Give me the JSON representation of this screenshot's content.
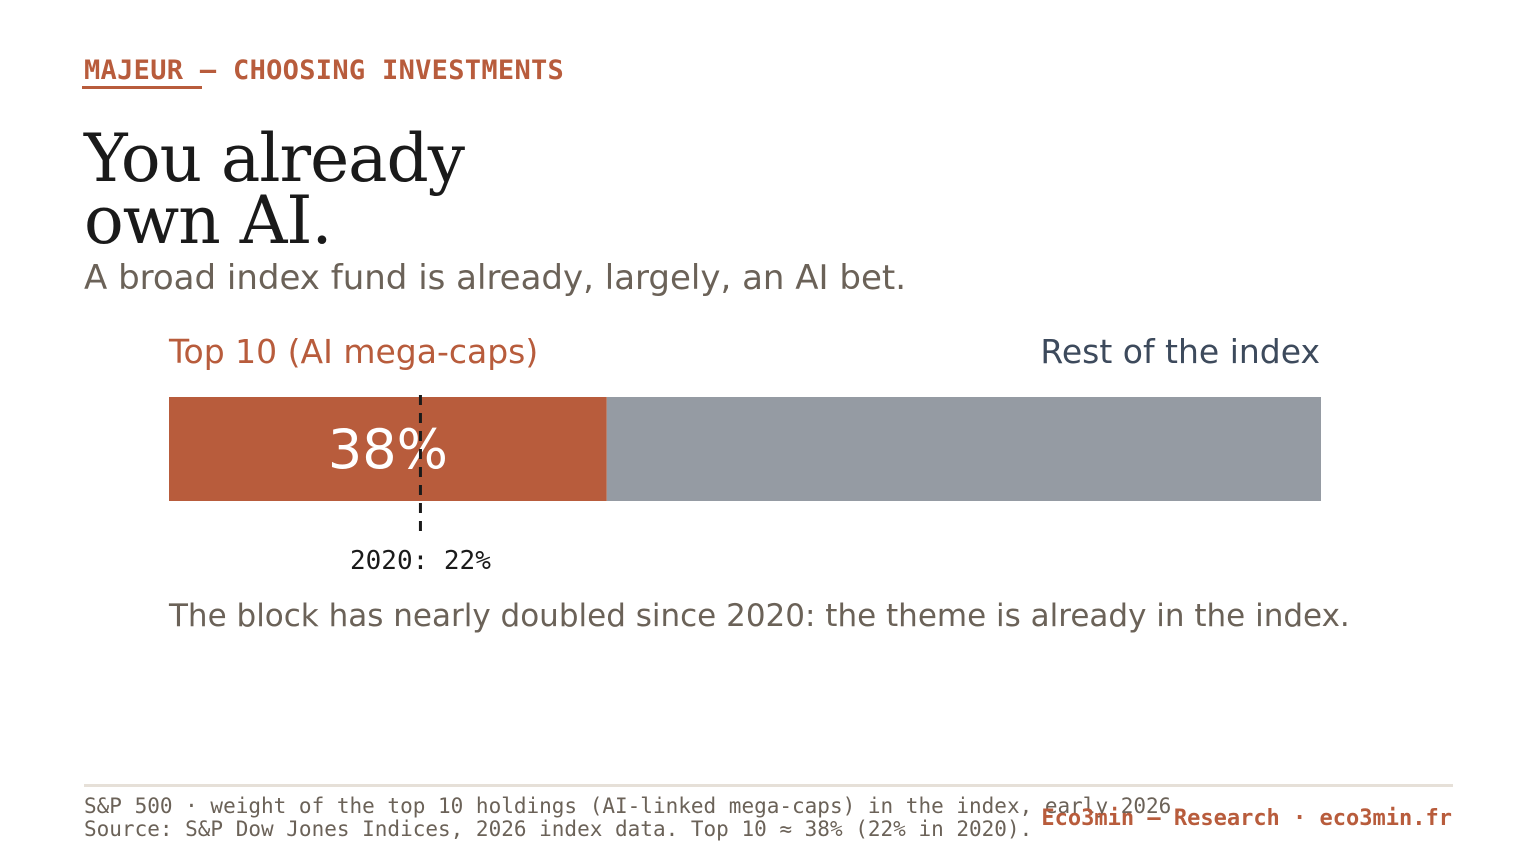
{
  "header": {
    "kicker_brand": "MAJEUR",
    "kicker_rest": " — CHOOSING INVESTMENTS",
    "title_line1": "You already",
    "title_line2": "own AI.",
    "subtitle": "A broad index fund is already, largely, an AI bet."
  },
  "chart_data": {
    "type": "bar",
    "orientation": "horizontal-stacked",
    "series": [
      {
        "name": "Top 10 (AI mega-caps)",
        "value": 38,
        "value_label": "38%",
        "color": "#b85c3c"
      },
      {
        "name": "Rest of the index",
        "value": 62,
        "color": "#959ba3"
      }
    ],
    "xlim": [
      0,
      100
    ],
    "reference_marker": {
      "value": 22,
      "label": "2020: 22%",
      "style": "dashed"
    },
    "caption": "The block has nearly doubled since 2020: the theme is already in the index."
  },
  "footer": {
    "note_line1": "S&P 500 · weight of the top 10 holdings (AI-linked mega-caps) in the index, early 2026.",
    "note_line2": "Source: S&P Dow Jones Indices, 2026 index data. Top 10 ≈ 38% (22% in 2020).",
    "brand": "Eco3min — Research · eco3min.fr"
  }
}
